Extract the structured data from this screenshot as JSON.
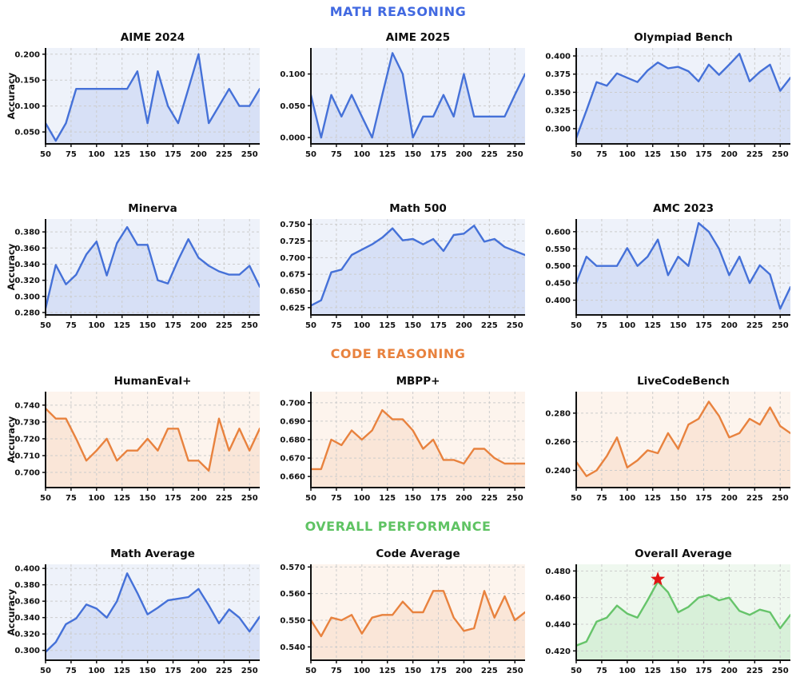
{
  "page": {
    "sections": [
      {
        "id": "math",
        "label": "MATH REASONING",
        "color": "#4169E1"
      },
      {
        "id": "code",
        "label": "CODE REASONING",
        "color": "#E8823E"
      },
      {
        "id": "overall",
        "label": "OVERALL PERFORMANCE",
        "color": "#5FC363"
      }
    ]
  },
  "chart_data": [
    {
      "type": "area",
      "title": "AIME 2024",
      "section": "math",
      "ylabel": "Accuracy",
      "color": "#4571D8",
      "bg": "#EEF2FA",
      "fill": "rgba(65,105,225,0.13)",
      "x": [
        50,
        60,
        70,
        80,
        90,
        100,
        110,
        120,
        130,
        140,
        150,
        160,
        170,
        180,
        190,
        200,
        210,
        220,
        230,
        240,
        250,
        260
      ],
      "values": [
        0.067,
        0.033,
        0.067,
        0.133,
        0.133,
        0.133,
        0.133,
        0.133,
        0.133,
        0.167,
        0.067,
        0.167,
        0.1,
        0.067,
        0.133,
        0.2,
        0.067,
        0.1,
        0.133,
        0.1,
        0.1,
        0.133
      ],
      "xticks": [
        50,
        75,
        100,
        125,
        150,
        175,
        200,
        225,
        250
      ],
      "yticks": [
        "0.050",
        "0.100",
        "0.150",
        "0.200"
      ],
      "xlim": [
        50,
        260
      ],
      "ylim": [
        0.027,
        0.212
      ],
      "grid": true
    },
    {
      "type": "area",
      "title": "AIME 2025",
      "section": "math",
      "ylabel": "",
      "color": "#4571D8",
      "bg": "#EEF2FA",
      "fill": "rgba(65,105,225,0.13)",
      "x": [
        50,
        60,
        70,
        80,
        90,
        100,
        110,
        120,
        130,
        140,
        150,
        160,
        170,
        180,
        190,
        200,
        210,
        220,
        230,
        240,
        250,
        260
      ],
      "values": [
        0.067,
        0.0,
        0.067,
        0.033,
        0.067,
        0.033,
        0.0,
        0.067,
        0.133,
        0.1,
        0.0,
        0.033,
        0.033,
        0.067,
        0.033,
        0.1,
        0.033,
        0.033,
        0.033,
        0.033,
        0.067,
        0.1
      ],
      "xticks": [
        50,
        75,
        100,
        125,
        150,
        175,
        200,
        225,
        250
      ],
      "yticks": [
        "0.000",
        "0.050",
        "0.100"
      ],
      "xlim": [
        50,
        260
      ],
      "ylim": [
        -0.01,
        0.141
      ],
      "grid": true
    },
    {
      "type": "area",
      "title": "Olympiad Bench",
      "section": "math",
      "ylabel": "",
      "color": "#4571D8",
      "bg": "#EEF2FA",
      "fill": "rgba(65,105,225,0.13)",
      "x": [
        50,
        60,
        70,
        80,
        90,
        100,
        110,
        120,
        130,
        140,
        150,
        160,
        170,
        180,
        190,
        200,
        210,
        220,
        230,
        240,
        250,
        260
      ],
      "values": [
        0.287,
        0.325,
        0.364,
        0.359,
        0.376,
        0.37,
        0.364,
        0.38,
        0.391,
        0.383,
        0.385,
        0.379,
        0.365,
        0.388,
        0.374,
        0.388,
        0.403,
        0.365,
        0.378,
        0.388,
        0.352,
        0.37
      ],
      "xticks": [
        50,
        75,
        100,
        125,
        150,
        175,
        200,
        225,
        250
      ],
      "yticks": [
        "0.300",
        "0.325",
        "0.350",
        "0.375",
        "0.400"
      ],
      "xlim": [
        50,
        260
      ],
      "ylim": [
        0.279,
        0.411
      ],
      "grid": true
    },
    {
      "type": "area",
      "title": "Minerva",
      "section": "math",
      "ylabel": "Accuracy",
      "color": "#4571D8",
      "bg": "#EEF2FA",
      "fill": "rgba(65,105,225,0.13)",
      "x": [
        50,
        60,
        70,
        80,
        90,
        100,
        110,
        120,
        130,
        140,
        150,
        160,
        170,
        180,
        190,
        200,
        210,
        220,
        230,
        240,
        250,
        260
      ],
      "values": [
        0.285,
        0.339,
        0.315,
        0.327,
        0.352,
        0.368,
        0.326,
        0.366,
        0.386,
        0.364,
        0.364,
        0.32,
        0.316,
        0.345,
        0.371,
        0.348,
        0.338,
        0.331,
        0.327,
        0.327,
        0.338,
        0.312
      ],
      "xticks": [
        50,
        75,
        100,
        125,
        150,
        175,
        200,
        225,
        250
      ],
      "yticks": [
        "0.280",
        "0.300",
        "0.320",
        "0.340",
        "0.360",
        "0.380"
      ],
      "xlim": [
        50,
        260
      ],
      "ylim": [
        0.277,
        0.396
      ],
      "grid": true
    },
    {
      "type": "area",
      "title": "Math 500",
      "section": "math",
      "ylabel": "",
      "color": "#4571D8",
      "bg": "#EEF2FA",
      "fill": "rgba(65,105,225,0.13)",
      "x": [
        50,
        60,
        70,
        80,
        90,
        100,
        110,
        120,
        130,
        140,
        150,
        160,
        170,
        180,
        190,
        200,
        210,
        220,
        230,
        240,
        250,
        260
      ],
      "values": [
        0.628,
        0.636,
        0.678,
        0.682,
        0.704,
        0.712,
        0.72,
        0.73,
        0.744,
        0.726,
        0.728,
        0.72,
        0.728,
        0.71,
        0.734,
        0.736,
        0.748,
        0.724,
        0.728,
        0.716,
        0.71,
        0.704
      ],
      "xticks": [
        50,
        75,
        100,
        125,
        150,
        175,
        200,
        225,
        250
      ],
      "yticks": [
        "0.625",
        "0.650",
        "0.675",
        "0.700",
        "0.725",
        "0.750"
      ],
      "xlim": [
        50,
        260
      ],
      "ylim": [
        0.614,
        0.758
      ],
      "grid": true
    },
    {
      "type": "area",
      "title": "AMC 2023",
      "section": "math",
      "ylabel": "",
      "color": "#4571D8",
      "bg": "#EEF2FA",
      "fill": "rgba(65,105,225,0.13)",
      "x": [
        50,
        60,
        70,
        80,
        90,
        100,
        110,
        120,
        130,
        140,
        150,
        160,
        170,
        180,
        190,
        200,
        210,
        220,
        230,
        240,
        250,
        260
      ],
      "values": [
        0.45,
        0.527,
        0.5,
        0.5,
        0.5,
        0.552,
        0.5,
        0.527,
        0.577,
        0.473,
        0.527,
        0.5,
        0.625,
        0.6,
        0.55,
        0.473,
        0.527,
        0.45,
        0.502,
        0.475,
        0.375,
        0.438
      ],
      "xticks": [
        50,
        75,
        100,
        125,
        150,
        175,
        200,
        225,
        250
      ],
      "yticks": [
        "0.400",
        "0.450",
        "0.500",
        "0.550",
        "0.600"
      ],
      "xlim": [
        50,
        260
      ],
      "ylim": [
        0.357,
        0.637
      ],
      "grid": true
    },
    {
      "type": "area",
      "title": "HumanEval+",
      "section": "code",
      "ylabel": "Accuracy",
      "color": "#E8823E",
      "bg": "#FDF4ED",
      "fill": "rgba(232,130,62,0.12)",
      "x": [
        50,
        60,
        70,
        80,
        90,
        100,
        110,
        120,
        130,
        140,
        150,
        160,
        170,
        180,
        190,
        200,
        210,
        220,
        230,
        240,
        250,
        260
      ],
      "values": [
        0.738,
        0.732,
        0.732,
        0.72,
        0.707,
        0.713,
        0.72,
        0.707,
        0.713,
        0.713,
        0.72,
        0.713,
        0.726,
        0.726,
        0.707,
        0.707,
        0.701,
        0.732,
        0.713,
        0.726,
        0.713,
        0.726
      ],
      "xticks": [
        50,
        75,
        100,
        125,
        150,
        175,
        200,
        225,
        250
      ],
      "yticks": [
        "0.700",
        "0.710",
        "0.720",
        "0.730",
        "0.740"
      ],
      "xlim": [
        50,
        260
      ],
      "ylim": [
        0.691,
        0.748
      ],
      "grid": true
    },
    {
      "type": "area",
      "title": "MBPP+",
      "section": "code",
      "ylabel": "",
      "color": "#E8823E",
      "bg": "#FDF4ED",
      "fill": "rgba(232,130,62,0.12)",
      "x": [
        50,
        60,
        70,
        80,
        90,
        100,
        110,
        120,
        130,
        140,
        150,
        160,
        170,
        180,
        190,
        200,
        210,
        220,
        230,
        240,
        250,
        260
      ],
      "values": [
        0.664,
        0.664,
        0.68,
        0.677,
        0.685,
        0.68,
        0.685,
        0.696,
        0.691,
        0.691,
        0.685,
        0.675,
        0.68,
        0.669,
        0.669,
        0.667,
        0.675,
        0.675,
        0.67,
        0.667,
        0.667,
        0.667
      ],
      "xticks": [
        50,
        75,
        100,
        125,
        150,
        175,
        200,
        225,
        250
      ],
      "yticks": [
        "0.660",
        "0.670",
        "0.680",
        "0.690",
        "0.700"
      ],
      "xlim": [
        50,
        260
      ],
      "ylim": [
        0.654,
        0.706
      ],
      "grid": true
    },
    {
      "type": "area",
      "title": "LiveCodeBench",
      "section": "code",
      "ylabel": "",
      "color": "#E8823E",
      "bg": "#FDF4ED",
      "fill": "rgba(232,130,62,0.12)",
      "x": [
        50,
        60,
        70,
        80,
        90,
        100,
        110,
        120,
        130,
        140,
        150,
        160,
        170,
        180,
        190,
        200,
        210,
        220,
        230,
        240,
        250,
        260
      ],
      "values": [
        0.246,
        0.236,
        0.24,
        0.25,
        0.263,
        0.242,
        0.247,
        0.254,
        0.252,
        0.266,
        0.255,
        0.272,
        0.276,
        0.288,
        0.278,
        0.263,
        0.266,
        0.276,
        0.272,
        0.284,
        0.271,
        0.266
      ],
      "xticks": [
        50,
        75,
        100,
        125,
        150,
        175,
        200,
        225,
        250
      ],
      "yticks": [
        "0.240",
        "0.260",
        "0.280"
      ],
      "xlim": [
        50,
        260
      ],
      "ylim": [
        0.228,
        0.295
      ],
      "grid": true
    },
    {
      "type": "area",
      "title": "Math Average",
      "section": "overall",
      "ylabel": "Accuracy",
      "color": "#4571D8",
      "bg": "#EEF2FA",
      "fill": "rgba(65,105,225,0.13)",
      "x": [
        50,
        60,
        70,
        80,
        90,
        100,
        110,
        120,
        130,
        140,
        150,
        160,
        170,
        180,
        190,
        200,
        210,
        220,
        230,
        240,
        250,
        260
      ],
      "values": [
        0.298,
        0.31,
        0.332,
        0.339,
        0.356,
        0.351,
        0.34,
        0.36,
        0.394,
        0.37,
        0.344,
        0.352,
        0.361,
        0.363,
        0.365,
        0.375,
        0.355,
        0.333,
        0.35,
        0.34,
        0.323,
        0.341
      ],
      "xticks": [
        50,
        75,
        100,
        125,
        150,
        175,
        200,
        225,
        250
      ],
      "yticks": [
        "0.300",
        "0.320",
        "0.340",
        "0.360",
        "0.380",
        "0.400"
      ],
      "xlim": [
        50,
        260
      ],
      "ylim": [
        0.288,
        0.405
      ],
      "grid": true
    },
    {
      "type": "area",
      "title": "Code Average",
      "section": "overall",
      "ylabel": "",
      "color": "#E8823E",
      "bg": "#FDF4ED",
      "fill": "rgba(232,130,62,0.12)",
      "x": [
        50,
        60,
        70,
        80,
        90,
        100,
        110,
        120,
        130,
        140,
        150,
        160,
        170,
        180,
        190,
        200,
        210,
        220,
        230,
        240,
        250,
        260
      ],
      "values": [
        0.55,
        0.544,
        0.551,
        0.55,
        0.552,
        0.545,
        0.551,
        0.552,
        0.552,
        0.557,
        0.553,
        0.553,
        0.561,
        0.561,
        0.551,
        0.546,
        0.547,
        0.561,
        0.551,
        0.559,
        0.55,
        0.553
      ],
      "xticks": [
        50,
        75,
        100,
        125,
        150,
        175,
        200,
        225,
        250
      ],
      "yticks": [
        "0.540",
        "0.550",
        "0.560",
        "0.570"
      ],
      "xlim": [
        50,
        260
      ],
      "ylim": [
        0.535,
        0.571
      ],
      "grid": true
    },
    {
      "type": "area",
      "title": "Overall Average",
      "section": "overall",
      "ylabel": "",
      "color": "#66C46A",
      "bg": "#EFF8EF",
      "fill": "rgba(102,196,106,0.16)",
      "x": [
        50,
        60,
        70,
        80,
        90,
        100,
        110,
        120,
        130,
        140,
        150,
        160,
        170,
        180,
        190,
        200,
        210,
        220,
        230,
        240,
        250,
        260
      ],
      "values": [
        0.424,
        0.427,
        0.442,
        0.445,
        0.454,
        0.448,
        0.445,
        0.458,
        0.472,
        0.464,
        0.449,
        0.453,
        0.46,
        0.462,
        0.458,
        0.46,
        0.45,
        0.447,
        0.451,
        0.449,
        0.437,
        0.447
      ],
      "xticks": [
        50,
        75,
        100,
        125,
        150,
        175,
        200,
        225,
        250
      ],
      "yticks": [
        "0.420",
        "0.440",
        "0.460",
        "0.480"
      ],
      "xlim": [
        50,
        260
      ],
      "ylim": [
        0.413,
        0.485
      ],
      "grid": true,
      "star": {
        "x": 130,
        "y": 0.472,
        "color": "#E01414",
        "meaning": "best checkpoint"
      }
    }
  ]
}
